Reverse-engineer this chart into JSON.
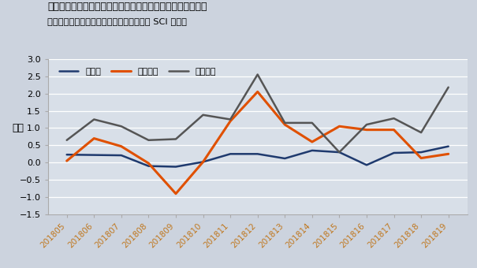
{
  "title": "公社債店頭売買高より外国人による中長期国債の買い越し額",
  "subtitle": "（出典：　日本証券業協会データより浜町 SCI 作成）",
  "ylabel": "兆円",
  "background_color": "#ccd3de",
  "plot_bg_color": "#d8dfe8",
  "x_labels": [
    "201805",
    "201806",
    "201807",
    "201808",
    "201809",
    "201810",
    "201811",
    "201812",
    "201813",
    "201814",
    "201815",
    "201816",
    "201817",
    "201818",
    "201819"
  ],
  "series": {
    "超長期": {
      "color": "#1f3a6e",
      "linewidth": 1.8,
      "values": [
        0.23,
        0.22,
        0.21,
        -0.1,
        -0.12,
        0.02,
        0.25,
        0.25,
        0.12,
        0.35,
        0.3,
        -0.07,
        0.28,
        0.3,
        0.47
      ]
    },
    "利付長期": {
      "color": "#e05000",
      "linewidth": 2.2,
      "values": [
        0.05,
        0.7,
        0.47,
        -0.02,
        -0.9,
        0.02,
        1.2,
        2.05,
        1.1,
        0.6,
        1.05,
        0.95,
        0.95,
        0.13,
        0.25
      ]
    },
    "利付中期": {
      "color": "#555555",
      "linewidth": 1.8,
      "values": [
        0.65,
        1.25,
        1.05,
        0.65,
        0.68,
        1.38,
        1.25,
        2.55,
        1.15,
        1.15,
        0.3,
        1.1,
        1.28,
        0.87,
        2.18
      ]
    }
  },
  "ylim": [
    -1.5,
    3.0
  ],
  "yticks": [
    -1.5,
    -1.0,
    -0.5,
    0.0,
    0.5,
    1.0,
    1.5,
    2.0,
    2.5,
    3.0
  ],
  "legend_labels": [
    "超長期",
    "利付長期",
    "利付中期"
  ]
}
